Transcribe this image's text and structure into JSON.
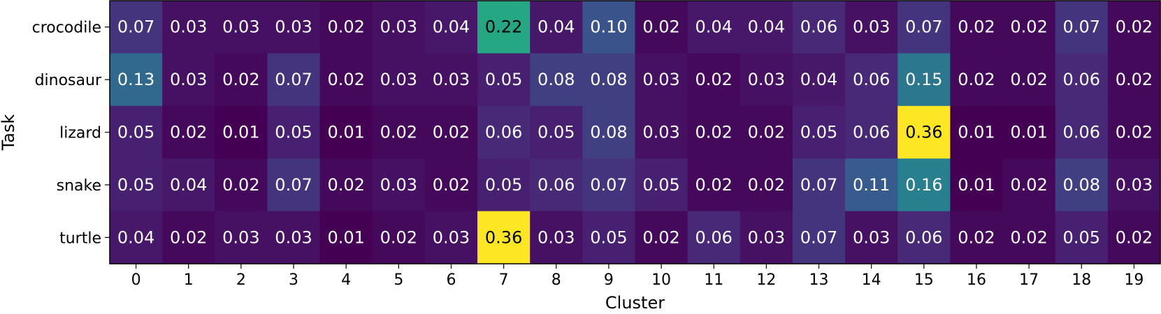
{
  "chart_data": {
    "type": "heatmap",
    "title": "",
    "xlabel": "Cluster",
    "ylabel": "Task",
    "x_categories": [
      "0",
      "1",
      "2",
      "3",
      "4",
      "5",
      "6",
      "7",
      "8",
      "9",
      "10",
      "11",
      "12",
      "13",
      "14",
      "15",
      "16",
      "17",
      "18",
      "19"
    ],
    "y_categories": [
      "crocodile",
      "dinosaur",
      "lizard",
      "snake",
      "turtle"
    ],
    "values": [
      [
        0.07,
        0.03,
        0.03,
        0.03,
        0.02,
        0.03,
        0.04,
        0.22,
        0.04,
        0.1,
        0.02,
        0.04,
        0.04,
        0.06,
        0.03,
        0.07,
        0.02,
        0.02,
        0.07,
        0.02
      ],
      [
        0.13,
        0.03,
        0.02,
        0.07,
        0.02,
        0.03,
        0.03,
        0.05,
        0.08,
        0.08,
        0.03,
        0.02,
        0.03,
        0.04,
        0.06,
        0.15,
        0.02,
        0.02,
        0.06,
        0.02
      ],
      [
        0.05,
        0.02,
        0.01,
        0.05,
        0.01,
        0.02,
        0.02,
        0.06,
        0.05,
        0.08,
        0.03,
        0.02,
        0.02,
        0.05,
        0.06,
        0.36,
        0.01,
        0.01,
        0.06,
        0.02
      ],
      [
        0.05,
        0.04,
        0.02,
        0.07,
        0.02,
        0.03,
        0.02,
        0.05,
        0.06,
        0.07,
        0.05,
        0.02,
        0.02,
        0.07,
        0.11,
        0.16,
        0.01,
        0.02,
        0.08,
        0.03
      ],
      [
        0.04,
        0.02,
        0.03,
        0.03,
        0.01,
        0.02,
        0.03,
        0.36,
        0.03,
        0.05,
        0.02,
        0.06,
        0.03,
        0.07,
        0.03,
        0.06,
        0.02,
        0.02,
        0.05,
        0.02
      ]
    ],
    "value_range": [
      0.01,
      0.36
    ],
    "colormap": "viridis",
    "grid": false,
    "legend": "none"
  }
}
